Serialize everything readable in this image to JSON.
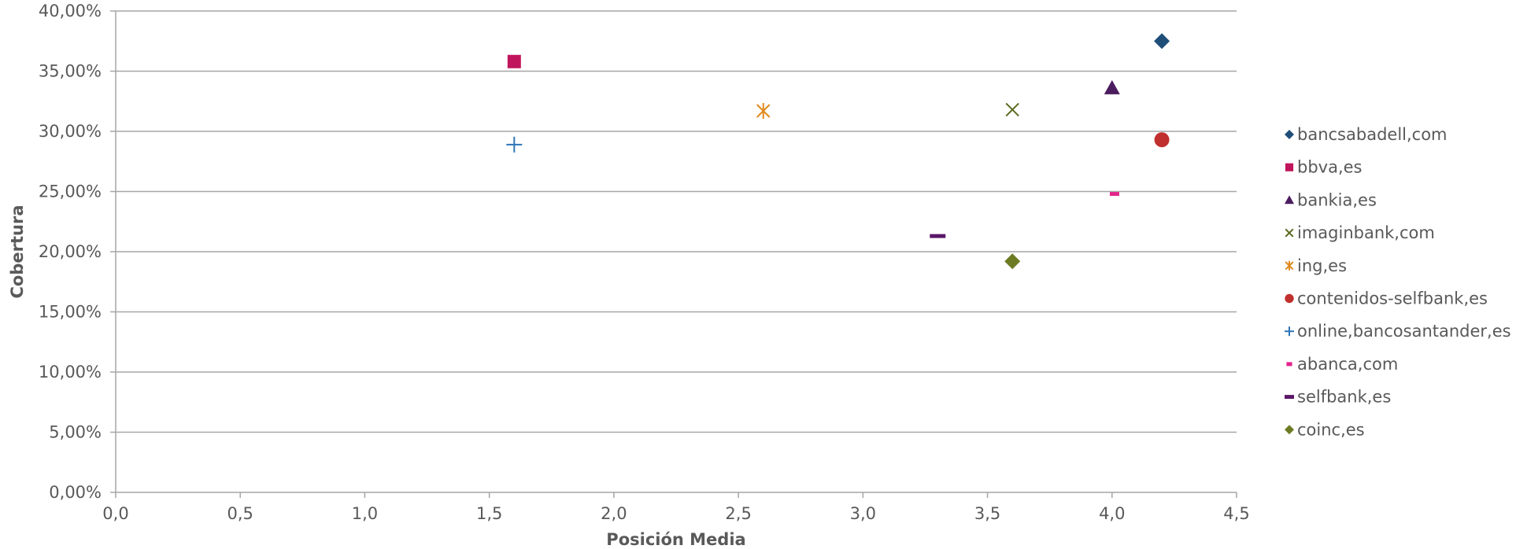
{
  "chart_data": {
    "type": "scatter",
    "xlabel": "Posición Media",
    "ylabel": "Cobertura",
    "xlim": [
      0,
      4.5
    ],
    "ylim": [
      0,
      40
    ],
    "x_ticks": [
      "0,0",
      "0,5",
      "1,0",
      "1,5",
      "2,0",
      "2,5",
      "3,0",
      "3,5",
      "4,0",
      "4,5"
    ],
    "y_ticks": [
      "0,00%",
      "5,00%",
      "10,00%",
      "15,00%",
      "20,00%",
      "25,00%",
      "30,00%",
      "35,00%",
      "40,00%"
    ],
    "grid": "horizontal",
    "legend_position": "right",
    "series": [
      {
        "name": "bancsabadell,com",
        "x": 4.2,
        "y": 37.5,
        "marker": "diamond",
        "color": "#1F4E79"
      },
      {
        "name": "bbva,es",
        "x": 1.6,
        "y": 35.8,
        "marker": "square",
        "color": "#C0155C"
      },
      {
        "name": "bankia,es",
        "x": 4.0,
        "y": 33.6,
        "marker": "triangle",
        "color": "#4B1C5E"
      },
      {
        "name": "imaginbank,com",
        "x": 3.6,
        "y": 31.8,
        "marker": "x",
        "color": "#5A6B1F"
      },
      {
        "name": "ing,es",
        "x": 2.6,
        "y": 31.7,
        "marker": "star",
        "color": "#E08A1E"
      },
      {
        "name": "contenidos-selfbank,es",
        "x": 4.2,
        "y": 29.3,
        "marker": "circle",
        "color": "#C0302E"
      },
      {
        "name": "online,bancosantander,es",
        "x": 1.6,
        "y": 28.9,
        "marker": "plus",
        "color": "#2E75B6"
      },
      {
        "name": "abanca,com",
        "x": 4.01,
        "y": 24.8,
        "marker": "dash-small",
        "color": "#E3248A"
      },
      {
        "name": "selfbank,es",
        "x": 3.3,
        "y": 21.3,
        "marker": "dash",
        "color": "#5B1767"
      },
      {
        "name": "coinc,es",
        "x": 3.6,
        "y": 19.2,
        "marker": "diamond",
        "color": "#6E7B25"
      }
    ]
  }
}
